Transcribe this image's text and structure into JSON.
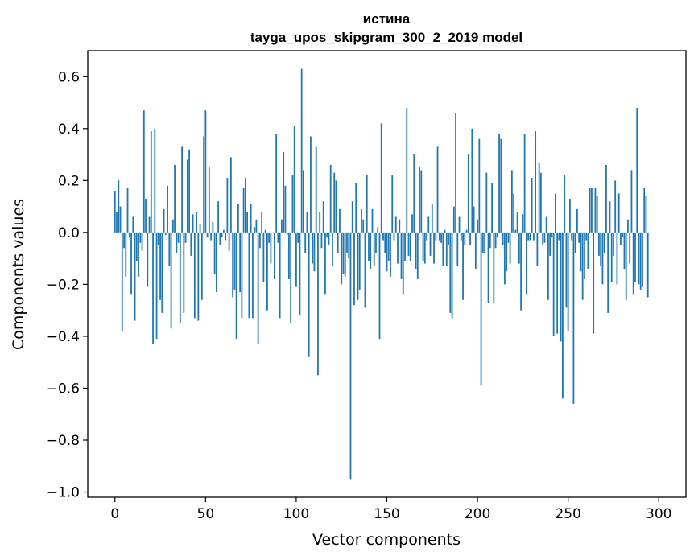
{
  "chart_data": {
    "type": "bar",
    "title_line1": "истина",
    "title_line2": "tayga_upos_skipgram_300_2_2019 model",
    "xlabel": "Vector components",
    "ylabel": "Components values",
    "xlim": [
      -15,
      315
    ],
    "ylim": [
      -1.02,
      0.7
    ],
    "xticks": [
      0,
      50,
      100,
      150,
      200,
      250,
      300
    ],
    "xtick_labels": [
      "0",
      "50",
      "100",
      "150",
      "200",
      "250",
      "300"
    ],
    "yticks": [
      0.6,
      0.4,
      0.2,
      0.0,
      -0.2,
      -0.4,
      -0.6,
      -0.8,
      -1.0
    ],
    "ytick_labels": [
      "0.6",
      "0.4",
      "0.2",
      "0.0",
      "−0.2",
      "−0.4",
      "−0.6",
      "−0.8",
      "−1.0"
    ],
    "bar_color": "#1f77b4",
    "series": [
      {
        "name": "истина",
        "values": [
          0.16,
          0.08,
          0.2,
          0.1,
          -0.38,
          -0.06,
          -0.17,
          0.17,
          -0.02,
          -0.24,
          0.06,
          -0.34,
          -0.11,
          -0.17,
          -0.04,
          -0.07,
          0.47,
          0.13,
          -0.21,
          0.06,
          0.39,
          -0.43,
          0.4,
          -0.41,
          -0.05,
          -0.26,
          -0.31,
          0.09,
          -0.01,
          0.18,
          -0.13,
          -0.37,
          0.05,
          0.26,
          -0.08,
          -0.04,
          -0.35,
          0.33,
          -0.31,
          -0.04,
          0.28,
          0.32,
          -0.09,
          0.07,
          -0.33,
          0.08,
          -0.34,
          0.03,
          -0.26,
          0.37,
          0.47,
          -0.02,
          0.25,
          -0.03,
          0.04,
          -0.16,
          -0.23,
          0.12,
          -0.05,
          -0.02,
          0.01,
          -0.03,
          0.21,
          -0.07,
          0.29,
          -0.25,
          -0.22,
          -0.41,
          0.11,
          -0.23,
          -0.33,
          0.17,
          0.21,
          0.08,
          -0.33,
          0.11,
          -0.33,
          0.02,
          0.05,
          -0.43,
          -0.06,
          0.08,
          -0.19,
          0.01,
          -0.3,
          -0.04,
          -0.12,
          0.0,
          -0.18,
          0.38,
          -0.04,
          -0.33,
          0.05,
          0.31,
          0.18,
          -0.01,
          -0.18,
          -0.35,
          0.22,
          0.41,
          -0.21,
          -0.04,
          -0.32,
          0.63,
          0.24,
          -0.08,
          0.08,
          -0.48,
          0.37,
          -0.12,
          -0.15,
          0.33,
          -0.55,
          0.08,
          -0.06,
          0.12,
          -0.24,
          -0.02,
          -0.05,
          0.26,
          -0.13,
          0.23,
          0.2,
          -0.08,
          0.09,
          -0.2,
          -0.16,
          -0.17,
          -0.08,
          -0.1,
          -0.95,
          0.12,
          -0.28,
          0.19,
          -0.26,
          -0.22,
          0.09,
          0.05,
          -0.29,
          0.22,
          -0.11,
          -0.14,
          0.09,
          -0.13,
          -0.08,
          0.02,
          -0.41,
          0.42,
          -0.03,
          -0.08,
          -0.15,
          -0.11,
          -0.17,
          0.22,
          -0.03,
          0.06,
          -0.12,
          0.05,
          -0.18,
          -0.24,
          -0.11,
          0.48,
          -0.09,
          -0.11,
          0.07,
          0.3,
          -0.14,
          -0.18,
          0.25,
          0.24,
          -0.11,
          -0.12,
          -0.03,
          0.06,
          -0.09,
          0.11,
          -0.12,
          -0.03,
          0.33,
          -0.03,
          -0.04,
          -0.13,
          0.01,
          -0.13,
          -0.05,
          -0.31,
          -0.33,
          0.1,
          0.46,
          -0.13,
          0.06,
          -0.03,
          -0.26,
          -0.05,
          0.01,
          0.3,
          -0.05,
          0.4,
          0.1,
          -0.14,
          0.05,
          0.36,
          -0.59,
          -0.08,
          -0.08,
          0.23,
          -0.27,
          -0.06,
          0.19,
          -0.27,
          -0.06,
          -0.02,
          0.38,
          0.36,
          -0.05,
          -0.2,
          -0.15,
          -0.04,
          -0.12,
          0.24,
          0.15,
          0.01,
          0.08,
          -0.12,
          -0.3,
          0.07,
          0.38,
          -0.24,
          -0.03,
          -0.03,
          0.21,
          -0.03,
          0.39,
          -0.13,
          0.27,
          0.23,
          -0.05,
          -0.04,
          0.06,
          -0.26,
          -0.09,
          -0.02,
          -0.4,
          0.15,
          -0.39,
          -0.03,
          -0.42,
          -0.64,
          0.22,
          -0.29,
          -0.38,
          0.13,
          -0.03,
          -0.66,
          -0.08,
          0.09,
          -0.04,
          -0.15,
          -0.26,
          -0.18,
          -0.03,
          -0.14,
          0.17,
          0.17,
          -0.39,
          0.17,
          0.14,
          -0.09,
          -0.13,
          -0.2,
          -0.08,
          0.26,
          -0.31,
          0.12,
          -0.19,
          -0.09,
          0.2,
          -0.2,
          0.15,
          -0.05,
          -0.02,
          -0.14,
          -0.26,
          0.05,
          -0.12,
          0.24,
          -0.24,
          -0.19,
          0.48,
          -0.2,
          -0.22,
          -0.21,
          0.17,
          0.14,
          -0.25
        ]
      }
    ]
  }
}
